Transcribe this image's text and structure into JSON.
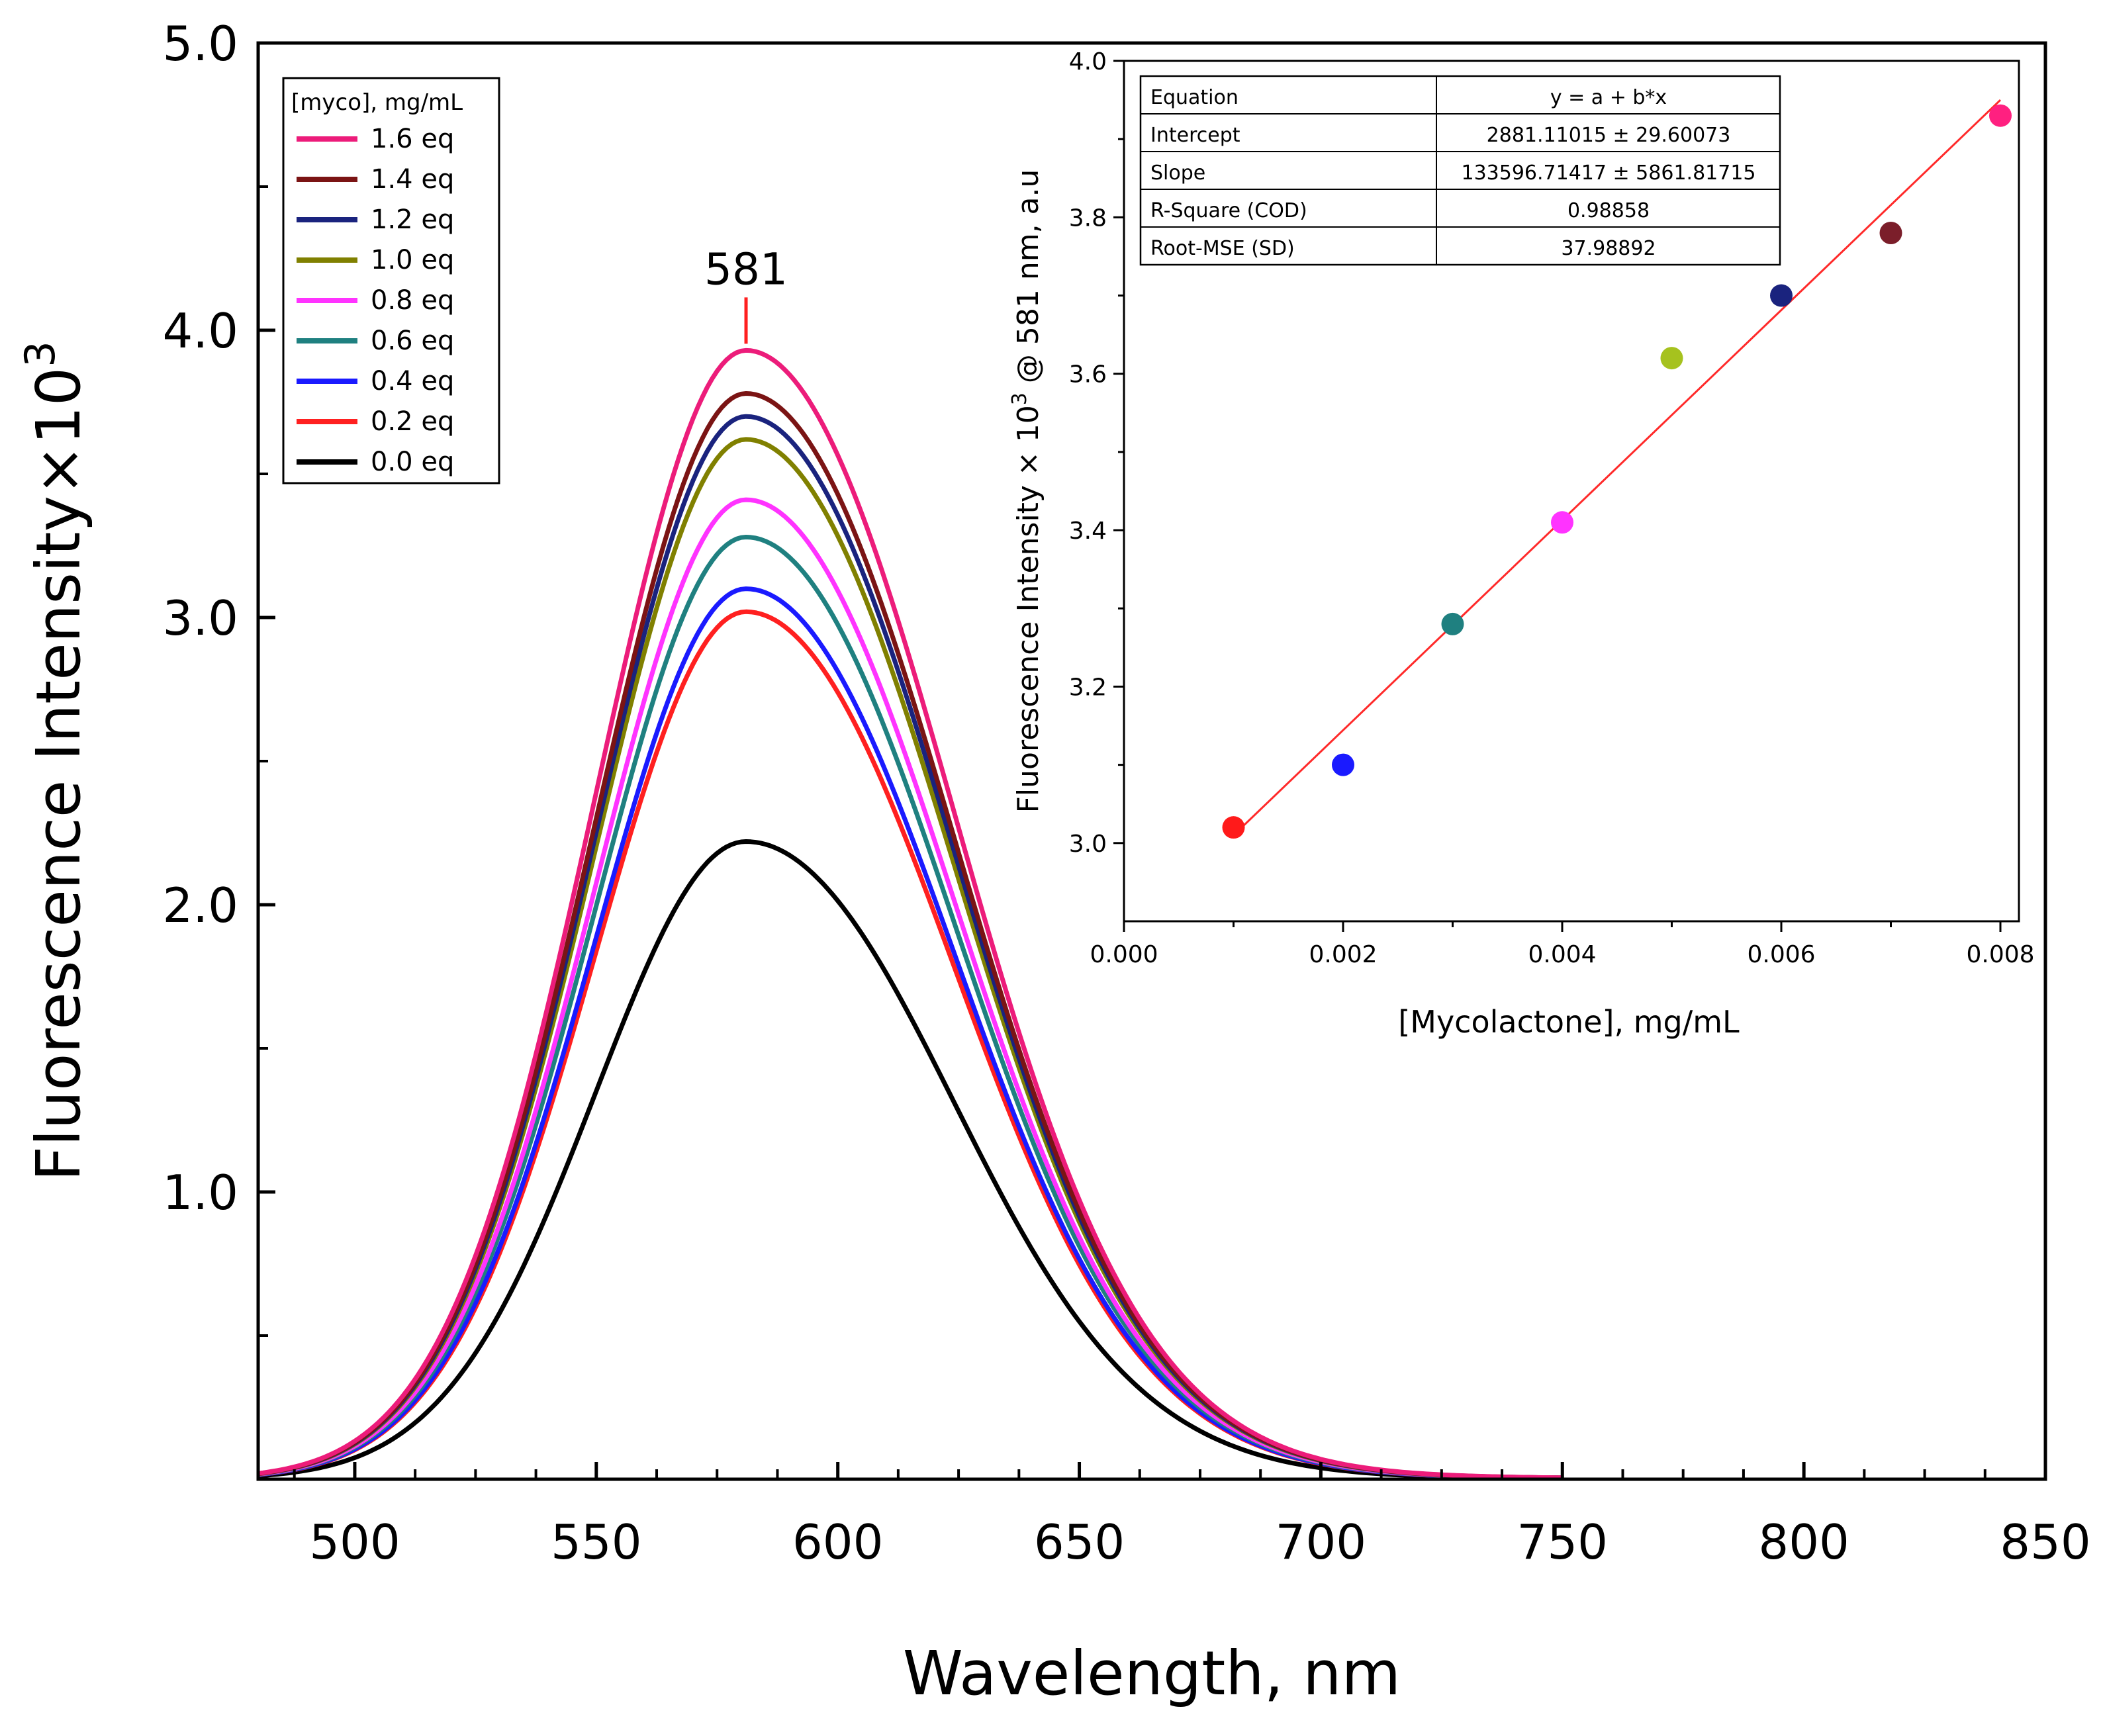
{
  "chart_data": [
    {
      "type": "line",
      "title": "",
      "xlabel": "Wavelength, nm",
      "ylabel": "Fluorescence Intensity×10",
      "ylabel_superscript": "3",
      "xlim": [
        480,
        850
      ],
      "ylim": [
        0,
        5.0
      ],
      "x_ticks": [
        "500",
        "550",
        "600",
        "650",
        "700",
        "750",
        "800",
        "850"
      ],
      "y_ticks": [
        "1.0",
        "2.0",
        "3.0",
        "4.0",
        "5.0"
      ],
      "peak_annotation": "581",
      "peak_x": 581,
      "legend_title": "[myco], mg/mL",
      "legend_position": "top-left",
      "series": [
        {
          "name": "1.6 eq",
          "color": "#ec1c7a",
          "peak": 3.93
        },
        {
          "name": "1.4 eq",
          "color": "#7b1414",
          "peak": 3.78
        },
        {
          "name": "1.2 eq",
          "color": "#1a237e",
          "peak": 3.7
        },
        {
          "name": "1.0 eq",
          "color": "#808000",
          "peak": 3.62
        },
        {
          "name": "0.8 eq",
          "color": "#ff33ff",
          "peak": 3.41
        },
        {
          "name": "0.6 eq",
          "color": "#1f8080",
          "peak": 3.28
        },
        {
          "name": "0.4 eq",
          "color": "#1a1aff",
          "peak": 3.1
        },
        {
          "name": "0.2 eq",
          "color": "#ff2020",
          "peak": 3.02
        },
        {
          "name": "0.0 eq",
          "color": "#000000",
          "peak": 2.22
        }
      ]
    },
    {
      "type": "scatter",
      "title": "",
      "xlabel": "[Mycolactone], mg/mL",
      "ylabel_prefix": "Fluorescence Intensity × 10",
      "ylabel_superscript": "3",
      "ylabel_suffix": " @ 581 nm, a.u",
      "xlim": [
        0.0,
        0.008
      ],
      "ylim": [
        2.9,
        4.0
      ],
      "x_ticks": [
        "0.000",
        "0.002",
        "0.004",
        "0.006",
        "0.008"
      ],
      "y_ticks": [
        "3.0",
        "3.2",
        "3.4",
        "3.6",
        "3.8",
        "4.0"
      ],
      "points": [
        {
          "x": 0.001,
          "y": 3.02,
          "color": "#ff1a1a"
        },
        {
          "x": 0.002,
          "y": 3.1,
          "color": "#1a1aff"
        },
        {
          "x": 0.003,
          "y": 3.28,
          "color": "#1f8080"
        },
        {
          "x": 0.004,
          "y": 3.41,
          "color": "#ff33ff"
        },
        {
          "x": 0.005,
          "y": 3.62,
          "color": "#a6c21e"
        },
        {
          "x": 0.006,
          "y": 3.7,
          "color": "#1a237e"
        },
        {
          "x": 0.007,
          "y": 3.78,
          "color": "#7b1e2a"
        },
        {
          "x": 0.008,
          "y": 3.93,
          "color": "#ff2080"
        }
      ],
      "fit": {
        "x": [
          0.001,
          0.008
        ],
        "y": [
          3.01,
          3.95
        ],
        "color": "#ff2a2a"
      },
      "stats_table": [
        [
          "Equation",
          "y = a + b*x"
        ],
        [
          "Intercept",
          "2881.11015 ± 29.60073"
        ],
        [
          "Slope",
          "133596.71417 ± 5861.81715"
        ],
        [
          "R-Square (COD)",
          "0.98858"
        ],
        [
          "Root-MSE (SD)",
          "37.98892"
        ]
      ]
    }
  ]
}
